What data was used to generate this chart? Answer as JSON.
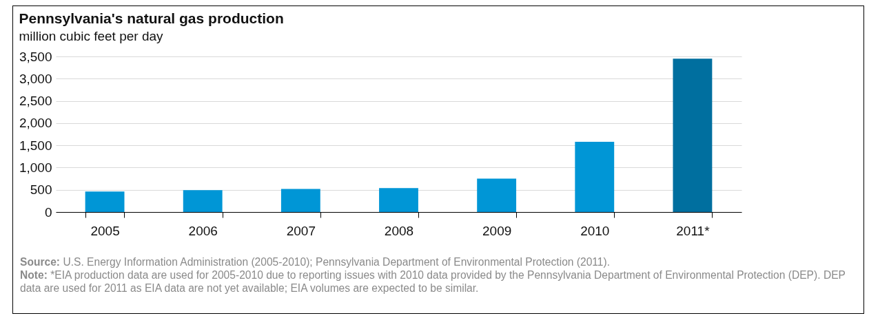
{
  "chart_data": {
    "type": "bar",
    "title": "Pennsylvania's natural gas production",
    "subtitle": "million cubic feet per day",
    "categories": [
      "2005",
      "2006",
      "2007",
      "2008",
      "2009",
      "2010",
      "2011*"
    ],
    "values": [
      460,
      490,
      520,
      540,
      750,
      1580,
      3450
    ],
    "colors": [
      "#0096d6",
      "#0096d6",
      "#0096d6",
      "#0096d6",
      "#0096d6",
      "#0096d6",
      "#006f9f"
    ],
    "ylim": [
      0,
      3500
    ],
    "yticks": [
      0,
      {
        "value": 500,
        "label": "500"
      },
      {
        "value": 1000,
        "label": "1,000"
      },
      {
        "value": 1500,
        "label": "1,500"
      },
      {
        "value": 2000,
        "label": "2,000"
      },
      {
        "value": 2500,
        "label": "2,500"
      },
      {
        "value": 3000,
        "label": "3,000"
      },
      {
        "value": 3500,
        "label": "3,500"
      }
    ],
    "grid": "y",
    "annotations": [
      "Source: U.S. Energy Information Administration (2005-2010); Pennsylvania Department of Environmental Protection (2011).",
      "Note: *EIA production data are used for 2005-2010 due to reporting issues with 2010 data provided by the Pennsylvania Department of Environmental Protection (DEP). DEP data are used for 2011 as EIA data are not yet available; EIA volumes are expected to be similar."
    ]
  }
}
